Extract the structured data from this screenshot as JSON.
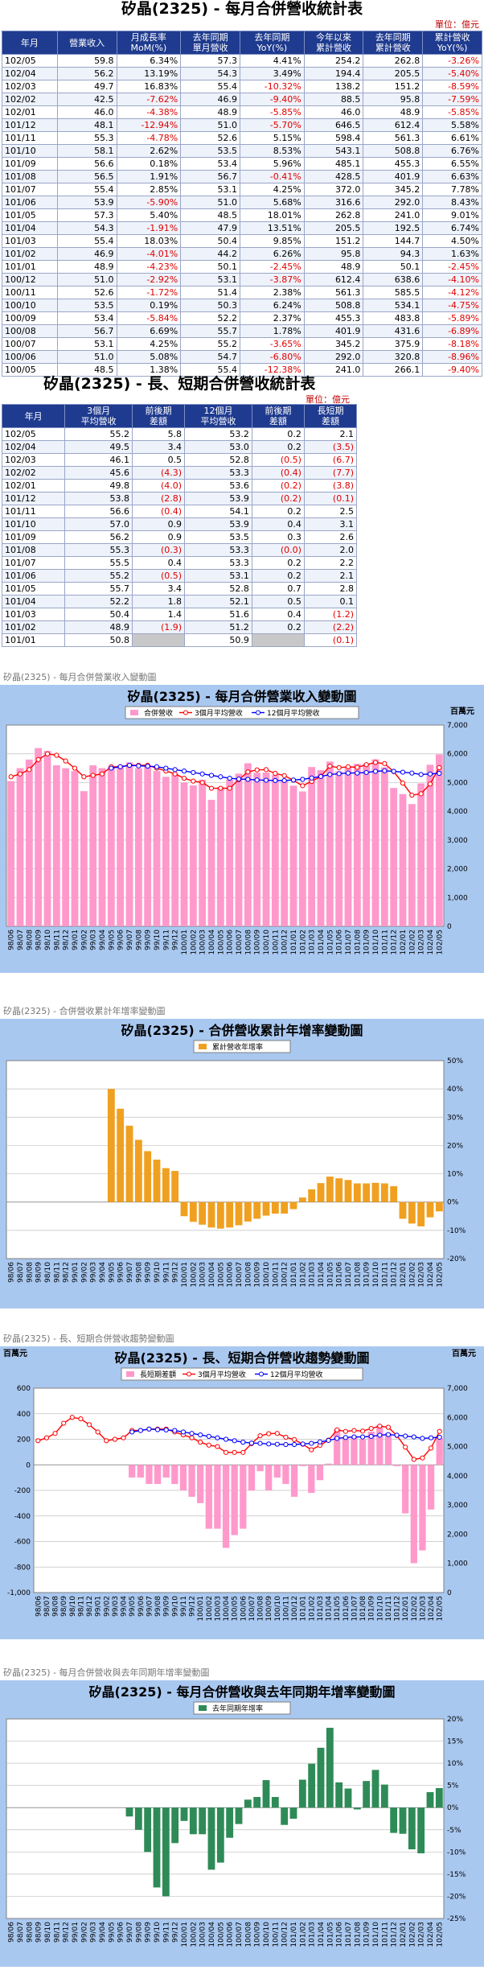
{
  "monthly": {
    "title": "矽晶(2325) - 每月合併營收統計表",
    "unit": "單位：億元",
    "headers": [
      "年月",
      "營業收入",
      "月成長率\nMoM(%)",
      "去年同期\n單月營收",
      "去年同期\nYoY(%)",
      "今年以來\n累計營收",
      "去年同期\n累計營收",
      "累計營收\nYoY(%)"
    ],
    "rows": [
      [
        "102/05",
        "59.8",
        "6.34%",
        "57.3",
        "4.41%",
        "254.2",
        "262.8",
        "-3.26%"
      ],
      [
        "102/04",
        "56.2",
        "13.19%",
        "54.3",
        "3.49%",
        "194.4",
        "205.5",
        "-5.40%"
      ],
      [
        "102/03",
        "49.7",
        "16.83%",
        "55.4",
        "-10.32%",
        "138.2",
        "151.2",
        "-8.59%"
      ],
      [
        "102/02",
        "42.5",
        "-7.62%",
        "46.9",
        "-9.40%",
        "88.5",
        "95.8",
        "-7.59%"
      ],
      [
        "102/01",
        "46.0",
        "-4.38%",
        "48.9",
        "-5.85%",
        "46.0",
        "48.9",
        "-5.85%"
      ],
      [
        "101/12",
        "48.1",
        "-12.94%",
        "51.0",
        "-5.70%",
        "646.5",
        "612.4",
        "5.58%"
      ],
      [
        "101/11",
        "55.3",
        "-4.78%",
        "52.6",
        "5.15%",
        "598.4",
        "561.3",
        "6.61%"
      ],
      [
        "101/10",
        "58.1",
        "2.62%",
        "53.5",
        "8.53%",
        "543.1",
        "508.8",
        "6.76%"
      ],
      [
        "101/09",
        "56.6",
        "0.18%",
        "53.4",
        "5.96%",
        "485.1",
        "455.3",
        "6.55%"
      ],
      [
        "101/08",
        "56.5",
        "1.91%",
        "56.7",
        "-0.41%",
        "428.5",
        "401.9",
        "6.63%"
      ],
      [
        "101/07",
        "55.4",
        "2.85%",
        "53.1",
        "4.25%",
        "372.0",
        "345.2",
        "7.78%"
      ],
      [
        "101/06",
        "53.9",
        "-5.90%",
        "51.0",
        "5.68%",
        "316.6",
        "292.0",
        "8.43%"
      ],
      [
        "101/05",
        "57.3",
        "5.40%",
        "48.5",
        "18.01%",
        "262.8",
        "241.0",
        "9.01%"
      ],
      [
        "101/04",
        "54.3",
        "-1.91%",
        "47.9",
        "13.51%",
        "205.5",
        "192.5",
        "6.74%"
      ],
      [
        "101/03",
        "55.4",
        "18.03%",
        "50.4",
        "9.85%",
        "151.2",
        "144.7",
        "4.50%"
      ],
      [
        "101/02",
        "46.9",
        "-4.01%",
        "44.2",
        "6.26%",
        "95.8",
        "94.3",
        "1.63%"
      ],
      [
        "101/01",
        "48.9",
        "-4.23%",
        "50.1",
        "-2.45%",
        "48.9",
        "50.1",
        "-2.45%"
      ],
      [
        "100/12",
        "51.0",
        "-2.92%",
        "53.1",
        "-3.87%",
        "612.4",
        "638.6",
        "-4.10%"
      ],
      [
        "100/11",
        "52.6",
        "-1.72%",
        "51.4",
        "2.38%",
        "561.3",
        "585.5",
        "-4.12%"
      ],
      [
        "100/10",
        "53.5",
        "0.19%",
        "50.3",
        "6.24%",
        "508.8",
        "534.1",
        "-4.75%"
      ],
      [
        "100/09",
        "53.4",
        "-5.84%",
        "52.2",
        "2.37%",
        "455.3",
        "483.8",
        "-5.89%"
      ],
      [
        "100/08",
        "56.7",
        "6.69%",
        "55.7",
        "1.78%",
        "401.9",
        "431.6",
        "-6.89%"
      ],
      [
        "100/07",
        "53.1",
        "4.25%",
        "55.2",
        "-3.65%",
        "345.2",
        "375.9",
        "-8.18%"
      ],
      [
        "100/06",
        "51.0",
        "5.08%",
        "54.7",
        "-6.80%",
        "292.0",
        "320.8",
        "-8.96%"
      ],
      [
        "100/05",
        "48.5",
        "1.38%",
        "55.4",
        "-12.38%",
        "241.0",
        "266.1",
        "-9.40%"
      ]
    ]
  },
  "longshort": {
    "title": "矽晶(2325) - 長、短期合併營收統計表",
    "unit": "單位：億元",
    "headers": [
      "年月",
      "3個月\n平均營收",
      "前後期\n差額",
      "12個月\n平均營收",
      "前後期\n差額",
      "長短期\n差額"
    ],
    "rows": [
      [
        "102/05",
        "55.2",
        "5.8",
        "53.2",
        "0.2",
        "2.1"
      ],
      [
        "102/04",
        "49.5",
        "3.4",
        "53.0",
        "0.2",
        "(3.5)"
      ],
      [
        "102/03",
        "46.1",
        "0.5",
        "52.8",
        "(0.5)",
        "(6.7)"
      ],
      [
        "102/02",
        "45.6",
        "(4.3)",
        "53.3",
        "(0.4)",
        "(7.7)"
      ],
      [
        "102/01",
        "49.8",
        "(4.0)",
        "53.6",
        "(0.2)",
        "(3.8)"
      ],
      [
        "101/12",
        "53.8",
        "(2.8)",
        "53.9",
        "(0.2)",
        "(0.1)"
      ],
      [
        "101/11",
        "56.6",
        "(0.4)",
        "54.1",
        "0.2",
        "2.5"
      ],
      [
        "101/10",
        "57.0",
        "0.9",
        "53.9",
        "0.4",
        "3.1"
      ],
      [
        "101/09",
        "56.2",
        "0.9",
        "53.5",
        "0.3",
        "2.6"
      ],
      [
        "101/08",
        "55.3",
        "(0.3)",
        "53.3",
        "(0.0)",
        "2.0"
      ],
      [
        "101/07",
        "55.5",
        "0.4",
        "53.3",
        "0.2",
        "2.2"
      ],
      [
        "101/06",
        "55.2",
        "(0.5)",
        "53.1",
        "0.2",
        "2.1"
      ],
      [
        "101/05",
        "55.7",
        "3.4",
        "52.8",
        "0.7",
        "2.8"
      ],
      [
        "101/04",
        "52.2",
        "1.8",
        "52.1",
        "0.5",
        "0.1"
      ],
      [
        "101/03",
        "50.4",
        "1.4",
        "51.6",
        "0.4",
        "(1.2)"
      ],
      [
        "101/02",
        "48.9",
        "(1.9)",
        "51.2",
        "0.2",
        "(2.2)"
      ],
      [
        "101/01",
        "50.8",
        "",
        "50.9",
        "",
        "(0.1)"
      ]
    ]
  },
  "captions": {
    "c1": "矽晶(2325) - 每月合併營業收入變動圖",
    "c2": "矽晶(2325) - 合併營收累計年增率變動圖",
    "c3": "矽晶(2325) - 長、短期合併營收趨勢變動圖",
    "c4": "矽晶(2325) - 每月合併營收與去年同期年增率變動圖"
  },
  "colors": {
    "header": "#1f3b8f",
    "chart_bg": "#a9c8f0",
    "pink": "#ff99cc",
    "orange": "#f0a020",
    "green": "#2e8b57",
    "red": "#ff0000",
    "blue": "#0000ff"
  },
  "chart_data": [
    {
      "type": "bar",
      "title": "矽晶(2325) - 每月合併營業收入變動圖",
      "unit_label": "百萬元",
      "legend": [
        "合併營收",
        "3個月平均營收",
        "12個月平均營收"
      ],
      "legend_position": "top-center",
      "ylim": [
        0,
        7000
      ],
      "yticks": [
        "0",
        "1,000",
        "2,000",
        "3,000",
        "4,000",
        "5,000",
        "6,000",
        "7,000"
      ],
      "x": [
        "98/06",
        "98/07",
        "98/08",
        "98/09",
        "98/10",
        "98/11",
        "98/12",
        "99/01",
        "99/02",
        "99/03",
        "99/04",
        "99/05",
        "99/06",
        "99/07",
        "99/08",
        "99/09",
        "99/10",
        "99/11",
        "99/12",
        "100/01",
        "100/02",
        "100/03",
        "100/04",
        "100/05",
        "100/06",
        "100/07",
        "100/08",
        "100/09",
        "100/10",
        "100/11",
        "100/12",
        "101/01",
        "101/02",
        "101/03",
        "101/04",
        "101/05",
        "101/06",
        "101/07",
        "101/08",
        "101/09",
        "101/10",
        "101/11",
        "101/12",
        "102/01",
        "102/02",
        "102/03",
        "102/04",
        "102/05"
      ],
      "series": [
        {
          "name": "合併營收",
          "type": "bar",
          "values": [
            5050,
            5500,
            5800,
            6200,
            6100,
            5600,
            5500,
            5400,
            4700,
            5600,
            5500,
            5550,
            5600,
            5700,
            5500,
            5600,
            5400,
            5200,
            5300,
            5000,
            4900,
            5100,
            4400,
            4850,
            5100,
            5310,
            5670,
            5340,
            5350,
            5260,
            5100,
            4890,
            4690,
            5540,
            5430,
            5730,
            5390,
            5540,
            5650,
            5660,
            5810,
            5530,
            4810,
            4600,
            4250,
            4970,
            5620,
            5980
          ]
        },
        {
          "name": "3個月平均營收",
          "type": "line",
          "values": [
            5200,
            5300,
            5450,
            5800,
            6000,
            5950,
            5750,
            5500,
            5200,
            5250,
            5300,
            5550,
            5550,
            5600,
            5600,
            5600,
            5500,
            5400,
            5300,
            5150,
            5050,
            5000,
            4800,
            4800,
            4800,
            5100,
            5370,
            5440,
            5450,
            5320,
            5240,
            5080,
            4890,
            5040,
            5220,
            5570,
            5520,
            5550,
            5530,
            5620,
            5700,
            5660,
            5380,
            4980,
            4560,
            4610,
            4950,
            5520
          ]
        },
        {
          "name": "12個月平均營收",
          "type": "line",
          "values": [
            null,
            null,
            null,
            null,
            null,
            null,
            null,
            null,
            null,
            null,
            null,
            5500,
            5550,
            5600,
            5580,
            5570,
            5550,
            5500,
            5450,
            5400,
            5350,
            5300,
            5250,
            5200,
            5150,
            5120,
            5110,
            5090,
            5080,
            5070,
            5070,
            5090,
            5110,
            5160,
            5210,
            5280,
            5310,
            5330,
            5330,
            5350,
            5390,
            5410,
            5390,
            5360,
            5330,
            5280,
            5300,
            5320
          ]
        }
      ]
    },
    {
      "type": "bar",
      "title": "矽晶(2325) - 合併營收累計年增率變動圖",
      "legend": [
        "累計營收年增率"
      ],
      "legend_position": "top-center",
      "ylim": [
        -20,
        50
      ],
      "yticks": [
        "-20%",
        "-10%",
        "0%",
        "10%",
        "20%",
        "30%",
        "40%",
        "50%"
      ],
      "x": [
        "98/06",
        "98/07",
        "98/08",
        "98/09",
        "98/10",
        "98/11",
        "98/12",
        "99/01",
        "99/02",
        "99/03",
        "99/04",
        "99/05",
        "99/06",
        "99/07",
        "99/08",
        "99/09",
        "99/10",
        "99/11",
        "99/12",
        "100/01",
        "100/02",
        "100/03",
        "100/04",
        "100/05",
        "100/06",
        "100/07",
        "100/08",
        "100/09",
        "100/10",
        "100/11",
        "100/12",
        "101/01",
        "101/02",
        "101/03",
        "101/04",
        "101/05",
        "101/06",
        "101/07",
        "101/08",
        "101/09",
        "101/10",
        "101/11",
        "101/12",
        "102/01",
        "102/02",
        "102/03",
        "102/04",
        "102/05"
      ],
      "series": [
        {
          "name": "累計營收年增率",
          "values": [
            null,
            null,
            null,
            null,
            null,
            null,
            null,
            null,
            null,
            null,
            null,
            40,
            33,
            27,
            22,
            18,
            15,
            12,
            11,
            -5,
            -7,
            -8,
            -9,
            -9.4,
            -9.0,
            -8.2,
            -6.9,
            -5.9,
            -4.8,
            -4.1,
            -4.1,
            -2.5,
            1.6,
            4.5,
            6.7,
            9.0,
            8.4,
            7.8,
            6.6,
            6.6,
            6.8,
            6.6,
            5.6,
            -5.9,
            -7.6,
            -8.6,
            -5.4,
            -3.3
          ]
        }
      ]
    },
    {
      "type": "bar",
      "title": "矽晶(2325) - 長、短期合併營收趨勢變動圖",
      "unit_label_left": "百萬元",
      "unit_label_right": "百萬元",
      "legend": [
        "長短期差額",
        "3個月平均營收",
        "12個月平均營收"
      ],
      "legend_position": "top-center",
      "ylim_left": [
        -1000,
        600
      ],
      "yticks_left": [
        "-1,000",
        "-800",
        "-600",
        "-400",
        "-200",
        "0",
        "200",
        "400",
        "600"
      ],
      "ylim_right": [
        0,
        7000
      ],
      "yticks_right": [
        "0",
        "1,000",
        "2,000",
        "3,000",
        "4,000",
        "5,000",
        "6,000",
        "7,000"
      ],
      "x": [
        "98/06",
        "98/07",
        "98/08",
        "98/09",
        "98/10",
        "98/11",
        "98/12",
        "99/01",
        "99/02",
        "99/03",
        "99/04",
        "99/05",
        "99/06",
        "99/07",
        "99/08",
        "99/09",
        "99/10",
        "99/11",
        "99/12",
        "100/01",
        "100/02",
        "100/03",
        "100/04",
        "100/05",
        "100/06",
        "100/07",
        "100/08",
        "100/09",
        "100/10",
        "100/11",
        "100/12",
        "101/01",
        "101/02",
        "101/03",
        "101/04",
        "101/05",
        "101/06",
        "101/07",
        "101/08",
        "101/09",
        "101/10",
        "101/11",
        "101/12",
        "102/01",
        "102/02",
        "102/03",
        "102/04",
        "102/05"
      ],
      "series": [
        {
          "name": "長短期差額",
          "type": "bar",
          "values": [
            null,
            null,
            null,
            null,
            null,
            null,
            null,
            null,
            null,
            null,
            null,
            -100,
            -100,
            -150,
            -150,
            -100,
            -150,
            -200,
            -250,
            -300,
            -500,
            -500,
            -650,
            -550,
            -500,
            -200,
            -50,
            -200,
            -100,
            -150,
            -250,
            -10,
            -220,
            -120,
            10,
            280,
            210,
            220,
            200,
            260,
            310,
            250,
            -10,
            -380,
            -770,
            -670,
            -350,
            210
          ]
        },
        {
          "name": "3個月平均營收",
          "type": "line",
          "values": [
            5200,
            5300,
            5450,
            5800,
            6000,
            5950,
            5750,
            5500,
            5200,
            5250,
            5300,
            5550,
            5550,
            5600,
            5600,
            5600,
            5500,
            5400,
            5300,
            5150,
            5050,
            5000,
            4800,
            4800,
            4800,
            5100,
            5370,
            5440,
            5450,
            5320,
            5240,
            5080,
            4890,
            5040,
            5220,
            5570,
            5520,
            5550,
            5530,
            5620,
            5700,
            5660,
            5380,
            4980,
            4560,
            4610,
            4950,
            5520
          ]
        },
        {
          "name": "12個月平均營收",
          "type": "line",
          "values": [
            null,
            null,
            null,
            null,
            null,
            null,
            null,
            null,
            null,
            null,
            null,
            5500,
            5550,
            5600,
            5580,
            5570,
            5550,
            5500,
            5450,
            5400,
            5350,
            5300,
            5250,
            5200,
            5150,
            5120,
            5110,
            5090,
            5080,
            5070,
            5070,
            5090,
            5110,
            5160,
            5210,
            5280,
            5310,
            5330,
            5330,
            5350,
            5390,
            5410,
            5390,
            5360,
            5330,
            5280,
            5300,
            5320
          ]
        }
      ]
    },
    {
      "type": "bar",
      "title": "矽晶(2325) - 每月合併營收與去年同期年增率變動圖",
      "legend": [
        "去年同期年增率"
      ],
      "legend_position": "top-center",
      "ylim": [
        -25,
        20
      ],
      "yticks": [
        "-25%",
        "-20%",
        "-15%",
        "-10%",
        "-5%",
        "0%",
        "5%",
        "10%",
        "15%",
        "20%"
      ],
      "x": [
        "98/06",
        "98/07",
        "98/08",
        "98/09",
        "98/10",
        "98/11",
        "98/12",
        "99/01",
        "99/02",
        "99/03",
        "99/04",
        "99/05",
        "99/06",
        "99/07",
        "99/08",
        "99/09",
        "99/10",
        "99/11",
        "99/12",
        "100/01",
        "100/02",
        "100/03",
        "100/04",
        "100/05",
        "100/06",
        "100/07",
        "100/08",
        "100/09",
        "100/10",
        "100/11",
        "100/12",
        "101/01",
        "101/02",
        "101/03",
        "101/04",
        "101/05",
        "101/06",
        "101/07",
        "101/08",
        "101/09",
        "101/10",
        "101/11",
        "101/12",
        "102/01",
        "102/02",
        "102/03",
        "102/04",
        "102/05"
      ],
      "series": [
        {
          "name": "去年同期年增率",
          "values": [
            null,
            null,
            null,
            null,
            null,
            null,
            null,
            null,
            null,
            null,
            null,
            null,
            null,
            -2,
            -5,
            -10,
            -18,
            -20,
            -8,
            -3,
            -6,
            -6,
            -14,
            -12.4,
            -6.8,
            -3.7,
            1.8,
            2.4,
            6.2,
            2.4,
            -3.9,
            -2.5,
            6.3,
            9.9,
            13.5,
            18.0,
            5.7,
            4.3,
            -0.4,
            6.0,
            8.5,
            5.2,
            -5.7,
            -5.9,
            -9.4,
            -10.3,
            3.5,
            4.4
          ]
        }
      ]
    }
  ]
}
